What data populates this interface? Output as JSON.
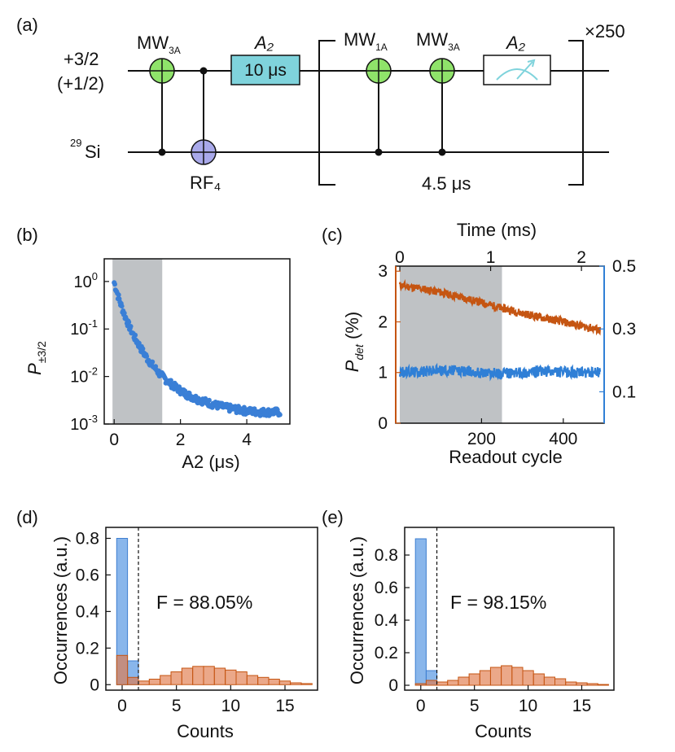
{
  "panel_labels": {
    "a": "(a)",
    "b": "(b)",
    "c": "(c)",
    "d": "(d)",
    "e": "(e)"
  },
  "circuit": {
    "state_label_line1": "+3/2",
    "state_label_line2": "(+1/2)",
    "si_sup": "29",
    "si_label": "Si",
    "mw3a_1_main": "MW",
    "mw3a_1_sub": "3A",
    "rf4": "RF₄",
    "a2_first": "A₂",
    "a2_box": "10 μs",
    "mw1a_main": "MW",
    "mw1a_sub": "1A",
    "mw3a_2_main": "MW",
    "mw3a_2_sub": "3A",
    "a2_second": "A₂",
    "repeat": "×250",
    "duration": "4.5 μs",
    "colors": {
      "mw": "#8fe36a",
      "rf": "#a9a9ea",
      "box": "#7fd3dc",
      "meter": "#7fd3dc"
    }
  },
  "chart_data": [
    {
      "panel": "b",
      "type": "scatter",
      "xlabel": "A2 (μs)",
      "ylabel_main": "P",
      "ylabel_sub": "±3/2",
      "xlim": [
        -0.3,
        5.3
      ],
      "ylim": [
        0.001,
        3
      ],
      "yscale": "log",
      "xticks": [
        0,
        2,
        4
      ],
      "yticks": [
        {
          "value": 1,
          "base": "10",
          "exp": "0"
        },
        {
          "value": 0.1,
          "base": "10",
          "exp": "-1"
        },
        {
          "value": 0.01,
          "base": "10",
          "exp": "-2"
        },
        {
          "value": 0.001,
          "base": "10",
          "exp": "-3"
        }
      ],
      "shaded_region_x": [
        -0.05,
        1.45
      ],
      "series": [
        {
          "color": "#3a7fd6",
          "x": [
            0,
            0.1,
            0.2,
            0.3,
            0.4,
            0.5,
            0.6,
            0.8,
            1.0,
            1.2,
            1.4,
            1.6,
            1.8,
            2.0,
            2.2,
            2.5,
            2.8,
            3.0,
            3.3,
            3.6,
            4.0,
            4.4,
            4.8,
            5.0
          ],
          "y": [
            0.95,
            0.55,
            0.33,
            0.21,
            0.14,
            0.098,
            0.07,
            0.04,
            0.024,
            0.016,
            0.011,
            0.0082,
            0.0064,
            0.0051,
            0.0042,
            0.0034,
            0.0029,
            0.0026,
            0.0023,
            0.0021,
            0.0019,
            0.0018,
            0.0018,
            0.0018
          ]
        }
      ]
    },
    {
      "panel": "c",
      "type": "line",
      "xlabel": "Readout cycle",
      "x2label": "Time (ms)",
      "ylabel_main": "P",
      "ylabel_sub": "det",
      "ylabel_unit": " (%)",
      "xlim": [
        -10,
        500
      ],
      "ylim": [
        0,
        3.1
      ],
      "x2lim": [
        -0.045,
        2.25
      ],
      "y2lim": [
        0.0,
        0.5
      ],
      "xticks": [
        200,
        400
      ],
      "x2ticks": [
        0,
        1,
        2
      ],
      "yticks": [
        0,
        1,
        2,
        3
      ],
      "y2ticks": [
        0.1,
        0.3,
        0.5
      ],
      "shaded_region_x": [
        0,
        250
      ],
      "series": [
        {
          "color": "#c55512",
          "x": [
            0,
            50,
            100,
            150,
            200,
            250,
            300,
            350,
            400,
            450,
            490
          ],
          "y": [
            2.72,
            2.66,
            2.58,
            2.48,
            2.38,
            2.27,
            2.17,
            2.08,
            2.0,
            1.91,
            1.84
          ]
        },
        {
          "color": "#2f7fd6",
          "x": [
            0,
            50,
            100,
            150,
            200,
            250,
            300,
            350,
            400,
            450,
            490
          ],
          "y": [
            1.0,
            1.02,
            1.05,
            1.03,
            1.0,
            0.98,
            1.0,
            1.02,
            1.01,
            0.99,
            1.0
          ]
        }
      ]
    },
    {
      "panel": "d",
      "type": "bar",
      "xlabel": "Counts",
      "ylabel": "Occurrences (a.u.)",
      "xlim": [
        -1.5,
        18
      ],
      "ylim": [
        -0.03,
        0.86
      ],
      "xticks": [
        0,
        5,
        10,
        15
      ],
      "yticks": [
        0,
        0.2,
        0.4,
        0.6,
        0.8
      ],
      "threshold": 1.5,
      "annotation": "F = 88.05%",
      "series": [
        {
          "color": "#4a8fe0",
          "bins": [
            0,
            1
          ],
          "values": [
            0.8,
            0.13
          ]
        },
        {
          "color": "#e07a4a",
          "bins": [
            0,
            1,
            2,
            3,
            4,
            5,
            6,
            7,
            8,
            9,
            10,
            11,
            12,
            13,
            14,
            15,
            16,
            17
          ],
          "values": [
            0.16,
            0.04,
            0.02,
            0.03,
            0.05,
            0.07,
            0.09,
            0.1,
            0.1,
            0.09,
            0.08,
            0.07,
            0.05,
            0.04,
            0.03,
            0.02,
            0.01,
            0.006
          ]
        }
      ]
    },
    {
      "panel": "e",
      "type": "bar",
      "xlabel": "Counts",
      "ylabel": "Occurrences (a.u.)",
      "xlim": [
        -1.5,
        18
      ],
      "ylim": [
        -0.03,
        0.97
      ],
      "xticks": [
        0,
        5,
        10,
        15
      ],
      "yticks": [
        0,
        0.2,
        0.4,
        0.6,
        0.8
      ],
      "threshold": 1.5,
      "annotation": "F = 98.15%",
      "series": [
        {
          "color": "#4a8fe0",
          "bins": [
            0,
            1
          ],
          "values": [
            0.9,
            0.09
          ]
        },
        {
          "color": "#e07a4a",
          "bins": [
            0,
            1,
            2,
            3,
            4,
            5,
            6,
            7,
            8,
            9,
            10,
            11,
            12,
            13,
            14,
            15,
            16,
            17
          ],
          "values": [
            0.01,
            0.03,
            0.02,
            0.03,
            0.05,
            0.07,
            0.09,
            0.11,
            0.12,
            0.11,
            0.09,
            0.07,
            0.05,
            0.04,
            0.02,
            0.015,
            0.01,
            0.005
          ]
        }
      ]
    }
  ]
}
